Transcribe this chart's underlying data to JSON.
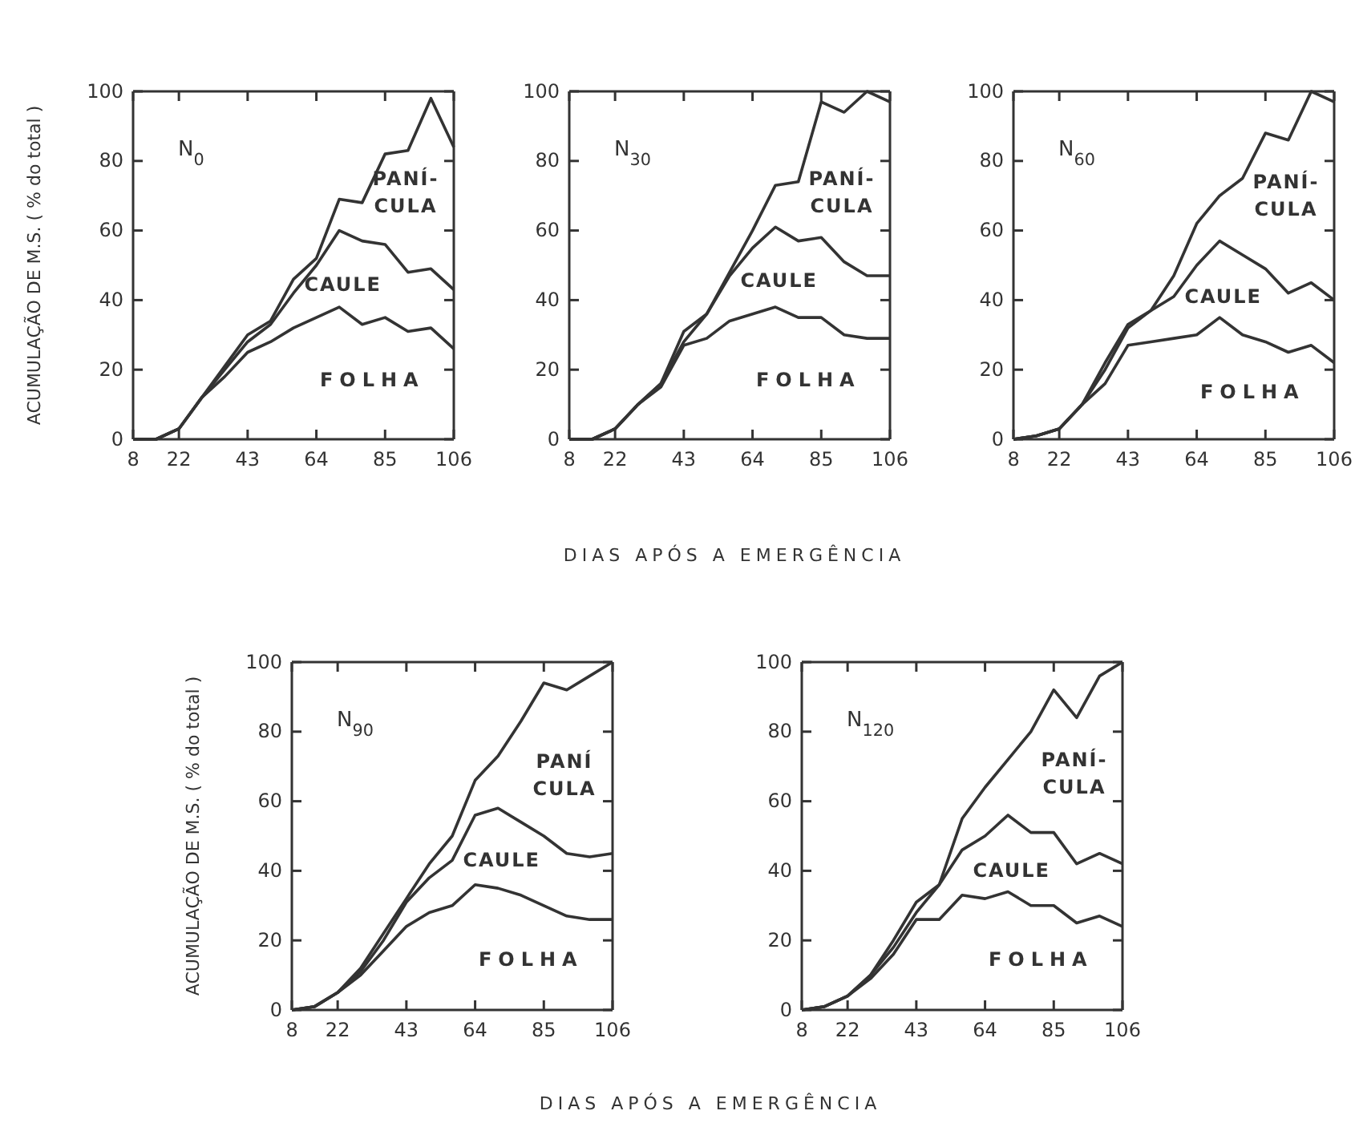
{
  "chart_data": [
    {
      "type": "line",
      "title": "N$_{0}$",
      "ylabel": "ACUMULAÇÃO DE M.S. ( % do total )",
      "x": [
        8,
        15,
        22,
        29,
        36,
        43,
        50,
        57,
        64,
        71,
        78,
        85,
        92,
        99,
        106
      ],
      "xlim": [
        8,
        106
      ],
      "xticks": [
        8,
        22,
        43,
        64,
        85,
        106
      ],
      "ylim": [
        0,
        100
      ],
      "yticks": [
        0,
        20,
        40,
        60,
        80,
        100
      ],
      "grid": false,
      "line_style": "solid",
      "series": [
        {
          "name": "FOLHA",
          "color": "#333333",
          "values": [
            0,
            0,
            3,
            12,
            18,
            25,
            28,
            32,
            35,
            38,
            33,
            35,
            31,
            32,
            26
          ]
        },
        {
          "name": "CAULE",
          "color": "#333333",
          "values": [
            0,
            0,
            3,
            12,
            20,
            28,
            33,
            42,
            50,
            60,
            57,
            56,
            48,
            49,
            43
          ]
        },
        {
          "name": "PANÍ-\nCULA",
          "color": "#333333",
          "values": [
            0,
            0,
            3,
            12,
            21,
            30,
            34,
            46,
            52,
            69,
            68,
            82,
            83,
            98,
            84
          ]
        }
      ]
    },
    {
      "type": "line",
      "title": "N$_{30}$",
      "xlabel": "DIAS APÓS A EMERGÊNCIA",
      "x": [
        8,
        15,
        22,
        29,
        36,
        43,
        50,
        57,
        64,
        71,
        78,
        85,
        92,
        99,
        106
      ],
      "xlim": [
        8,
        106
      ],
      "xticks": [
        8,
        22,
        43,
        64,
        85,
        106
      ],
      "ylim": [
        0,
        100
      ],
      "yticks": [
        0,
        20,
        40,
        60,
        80,
        100
      ],
      "grid": false,
      "line_style": "solid",
      "series": [
        {
          "name": "FOLHA",
          "color": "#333333",
          "values": [
            0,
            0,
            3,
            10,
            15,
            27,
            29,
            34,
            36,
            38,
            35,
            35,
            30,
            29,
            29
          ]
        },
        {
          "name": "CAULE",
          "color": "#333333",
          "values": [
            0,
            0,
            3,
            10,
            16,
            28,
            36,
            47,
            55,
            61,
            57,
            58,
            51,
            47,
            47
          ]
        },
        {
          "name": "PANÍ-\nCULA",
          "color": "#333333",
          "values": [
            0,
            0,
            3,
            10,
            16,
            31,
            36,
            48,
            60,
            73,
            74,
            97,
            94,
            100,
            97
          ]
        }
      ]
    },
    {
      "type": "line",
      "title": "N$_{60}$",
      "x": [
        8,
        15,
        22,
        29,
        36,
        43,
        50,
        57,
        64,
        71,
        78,
        85,
        92,
        99,
        106
      ],
      "xlim": [
        8,
        106
      ],
      "xticks": [
        8,
        22,
        43,
        64,
        85,
        106
      ],
      "ylim": [
        0,
        100
      ],
      "yticks": [
        0,
        20,
        40,
        60,
        80,
        100
      ],
      "grid": false,
      "line_style": "solid",
      "series": [
        {
          "name": "FOLHA",
          "color": "#333333",
          "values": [
            0,
            1,
            3,
            10,
            16,
            27,
            28,
            29,
            30,
            35,
            30,
            28,
            25,
            27,
            22
          ]
        },
        {
          "name": "CAULE",
          "color": "#333333",
          "values": [
            0,
            1,
            3,
            10,
            20,
            32,
            37,
            41,
            50,
            57,
            53,
            49,
            42,
            45,
            40
          ]
        },
        {
          "name": "PANÍ-\nCULA",
          "color": "#333333",
          "values": [
            0,
            1,
            3,
            10,
            22,
            33,
            37,
            47,
            62,
            70,
            75,
            88,
            86,
            100,
            97
          ]
        }
      ]
    },
    {
      "type": "line",
      "title": "N$_{90}$",
      "ylabel": "ACUMULAÇÃO DE M.S. ( % do total )",
      "xlabel": "DIAS APÓS A EMERGÊNCIA",
      "x": [
        8,
        15,
        22,
        29,
        36,
        43,
        50,
        57,
        64,
        71,
        78,
        85,
        92,
        99,
        106
      ],
      "xlim": [
        8,
        106
      ],
      "xticks": [
        8,
        22,
        43,
        64,
        85,
        106
      ],
      "ylim": [
        0,
        100
      ],
      "yticks": [
        0,
        20,
        40,
        60,
        80,
        100
      ],
      "grid": false,
      "line_style": "solid",
      "series": [
        {
          "name": "FOLHA",
          "color": "#333333",
          "values": [
            0,
            1,
            5,
            10,
            17,
            24,
            28,
            30,
            36,
            35,
            33,
            30,
            27,
            26,
            26
          ]
        },
        {
          "name": "CAULE",
          "color": "#333333",
          "values": [
            0,
            1,
            5,
            11,
            20,
            31,
            38,
            43,
            56,
            58,
            54,
            50,
            45,
            44,
            45
          ]
        },
        {
          "name": "PANÍ\nCULA",
          "color": "#333333",
          "values": [
            0,
            1,
            5,
            12,
            22,
            32,
            42,
            50,
            66,
            73,
            83,
            94,
            92,
            96,
            100
          ]
        }
      ]
    },
    {
      "type": "line",
      "title": "N$_{120}$",
      "x": [
        8,
        15,
        22,
        29,
        36,
        43,
        50,
        57,
        64,
        71,
        78,
        85,
        92,
        99,
        106
      ],
      "xlim": [
        8,
        106
      ],
      "xticks": [
        8,
        22,
        43,
        64,
        85,
        106
      ],
      "ylim": [
        0,
        100
      ],
      "yticks": [
        0,
        20,
        40,
        60,
        80,
        100
      ],
      "grid": false,
      "line_style": "solid",
      "series": [
        {
          "name": "FOLHA",
          "color": "#333333",
          "values": [
            0,
            1,
            4,
            9,
            16,
            26,
            26,
            33,
            32,
            34,
            30,
            30,
            25,
            27,
            24
          ]
        },
        {
          "name": "CAULE",
          "color": "#333333",
          "values": [
            0,
            1,
            4,
            10,
            18,
            28,
            36,
            46,
            50,
            56,
            51,
            51,
            42,
            45,
            42
          ]
        },
        {
          "name": "PANÍ-\nCULA",
          "color": "#333333",
          "values": [
            0,
            1,
            4,
            10,
            20,
            31,
            36,
            55,
            64,
            72,
            80,
            92,
            84,
            96,
            100
          ]
        }
      ]
    }
  ]
}
